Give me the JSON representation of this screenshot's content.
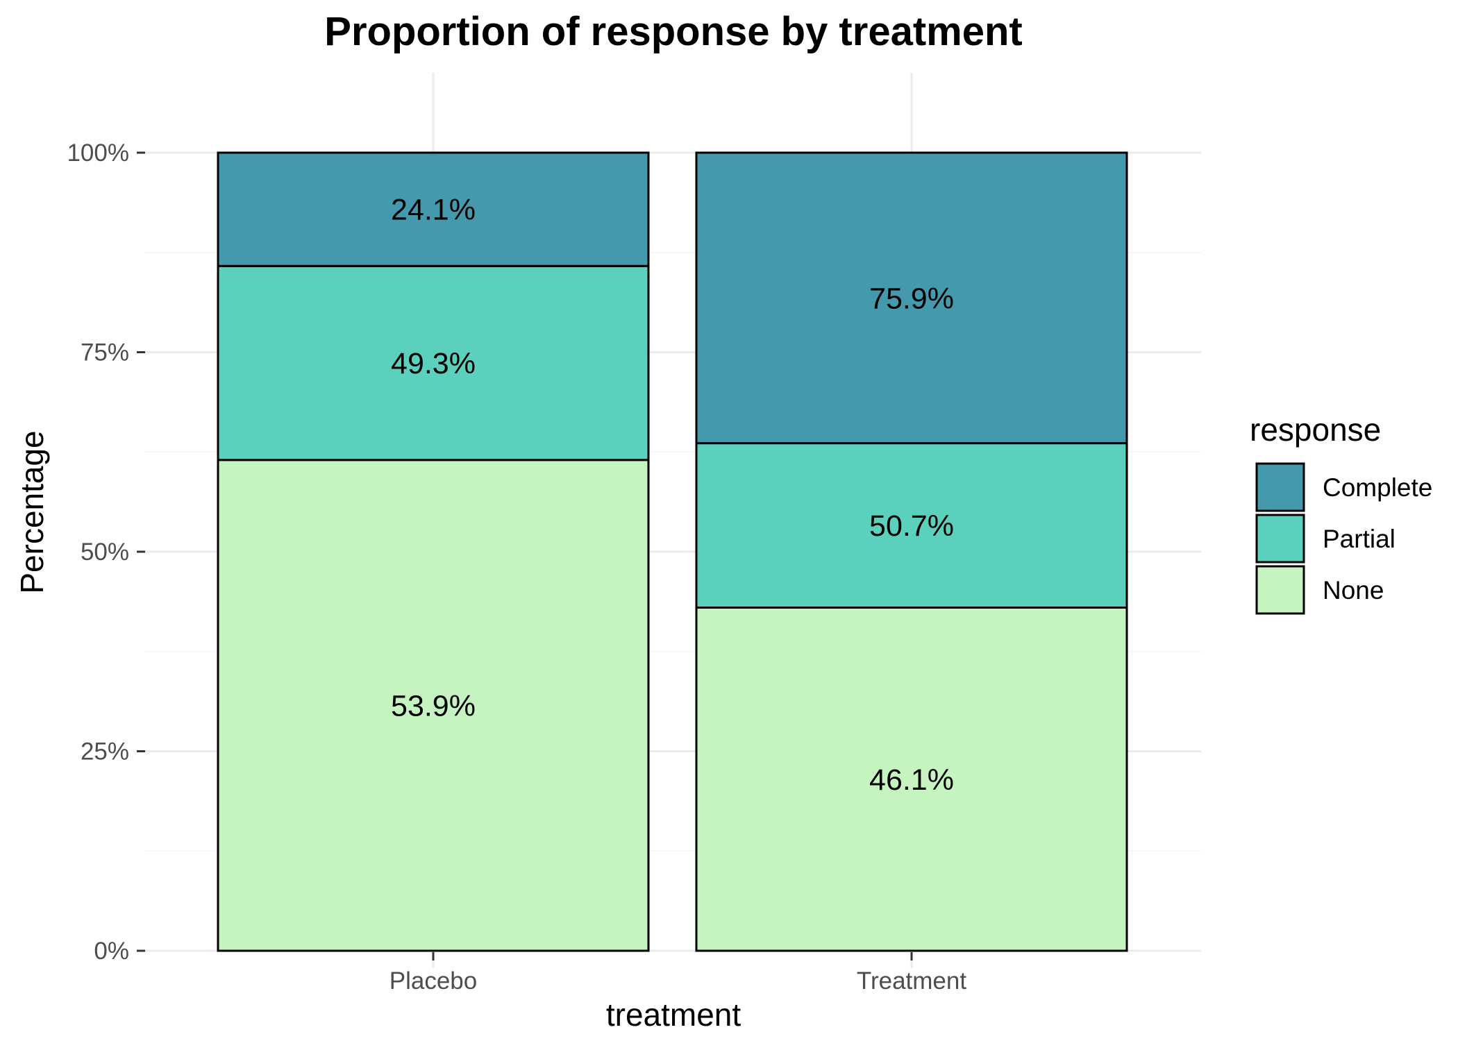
{
  "chart_data": {
    "type": "bar",
    "stacked": true,
    "title": "Proportion of response by treatment",
    "xlabel": "treatment",
    "ylabel": "Percentage",
    "categories": [
      "Placebo",
      "Treatment"
    ],
    "ylim": [
      0,
      1
    ],
    "yticks": [
      0,
      0.25,
      0.5,
      0.75,
      1
    ],
    "ytick_labels": [
      "0%",
      "25%",
      "50%",
      "75%",
      "100%"
    ],
    "grid": true,
    "series": [
      {
        "name": "None",
        "color": "#c5f4c0",
        "values": [
          0.615,
          0.43
        ],
        "labels": [
          "53.9%",
          "46.1%"
        ]
      },
      {
        "name": "Partial",
        "color": "#5bd1bd",
        "values": [
          0.243,
          0.206
        ],
        "labels": [
          "49.3%",
          "50.7%"
        ]
      },
      {
        "name": "Complete",
        "color": "#4499ad",
        "values": [
          0.142,
          0.364
        ],
        "labels": [
          "24.1%",
          "75.9%"
        ]
      }
    ],
    "legend": {
      "title": "response",
      "position": "right",
      "order": [
        "Complete",
        "Partial",
        "None"
      ]
    }
  }
}
